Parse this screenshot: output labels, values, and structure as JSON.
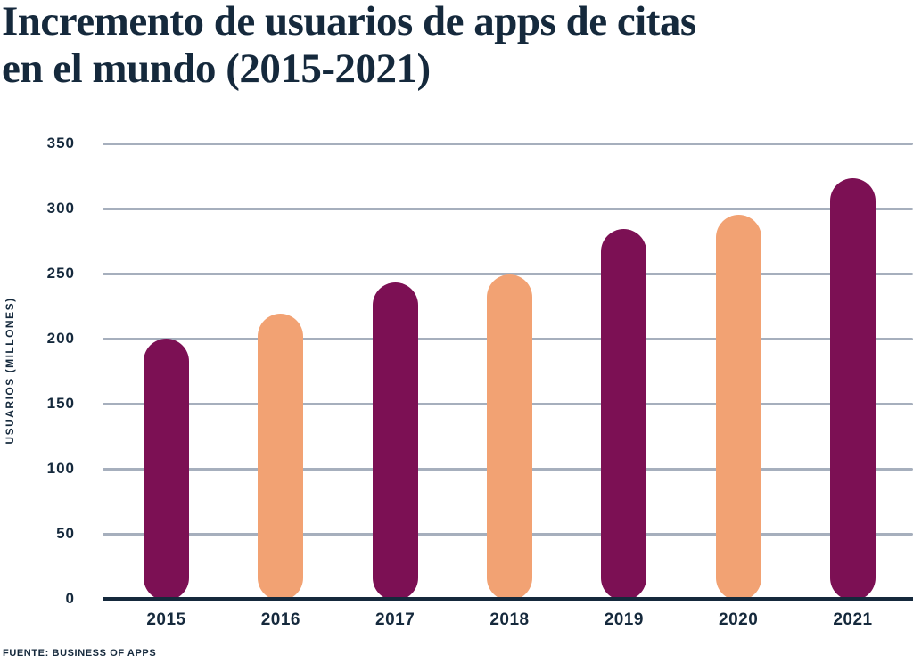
{
  "title": {
    "line1": "Incremento de usuarios de apps de citas",
    "line2": "en el mundo (2015-2021)"
  },
  "source": {
    "label": "FUENTE: BUSINESS OF APPS"
  },
  "colors": {
    "navy": "#15293C",
    "magenta": "#7C1054",
    "peach": "#F2A273",
    "gridline": "#A6AFBD",
    "background": "#FFFFFF"
  },
  "chart_data": {
    "type": "bar",
    "title": "Incremento de usuarios de apps de citas en el mundo (2015-2021)",
    "xlabel": "",
    "ylabel": "USUARIOS (MILLONES)",
    "categories": [
      "2015",
      "2016",
      "2017",
      "2018",
      "2019",
      "2020",
      "2021"
    ],
    "values": [
      200,
      219,
      243,
      249,
      284,
      295,
      323
    ],
    "bar_colors": [
      "#7C1054",
      "#F2A273",
      "#7C1054",
      "#F2A273",
      "#7C1054",
      "#F2A273",
      "#7C1054"
    ],
    "ylim": [
      0,
      350
    ],
    "yticks": [
      0,
      50,
      100,
      150,
      200,
      250,
      300,
      350
    ],
    "grid": true,
    "legend": false,
    "bar_corner_style": "pill"
  }
}
